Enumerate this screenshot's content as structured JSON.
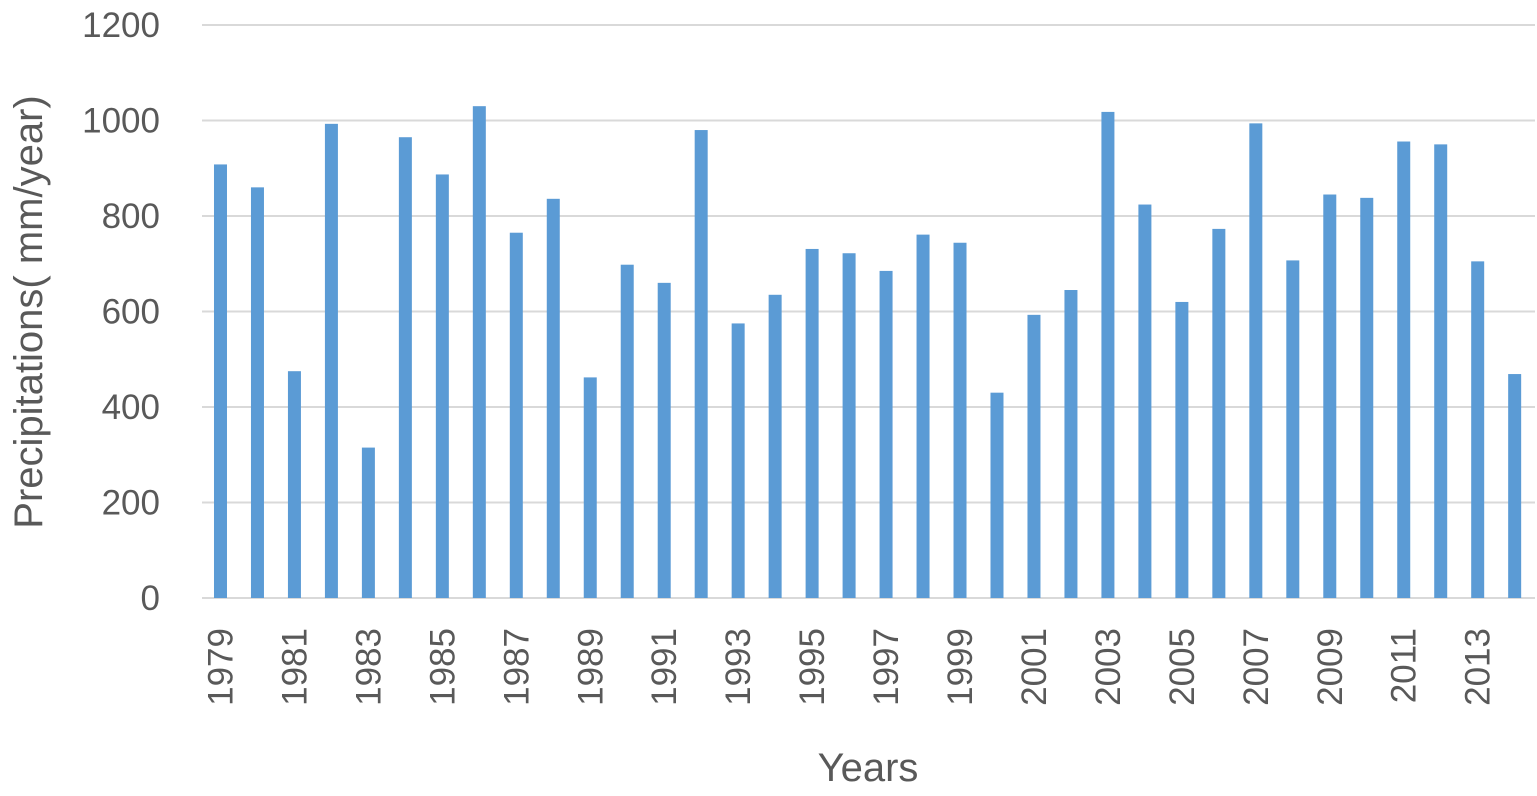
{
  "chart_data": {
    "type": "bar",
    "title": "",
    "xlabel": "Years",
    "ylabel": "Precipitations( mm/year)",
    "ylim": [
      0,
      1200
    ],
    "yticks": [
      0,
      200,
      400,
      600,
      800,
      1000,
      1200
    ],
    "grid": true,
    "legend": "none",
    "bar_color": "#5b9bd5",
    "categories": [
      "1979",
      "1980",
      "1981",
      "1982",
      "1983",
      "1984",
      "1985",
      "1986",
      "1987",
      "1988",
      "1989",
      "1990",
      "1991",
      "1992",
      "1993",
      "1994",
      "1995",
      "1996",
      "1997",
      "1998",
      "1999",
      "2000",
      "2001",
      "2002",
      "2003",
      "2004",
      "2005",
      "2006",
      "2007",
      "2008",
      "2009",
      "2010",
      "2011",
      "2012",
      "2013",
      "2014"
    ],
    "tick_labels": [
      "1979",
      "",
      "1981",
      "",
      "1983",
      "",
      "1985",
      "",
      "1987",
      "",
      "1989",
      "",
      "1991",
      "",
      "1993",
      "",
      "1995",
      "",
      "1997",
      "",
      "1999",
      "",
      "2001",
      "",
      "2003",
      "",
      "2005",
      "",
      "2007",
      "",
      "2009",
      "",
      "2011",
      "",
      "2013",
      ""
    ],
    "values": [
      908,
      860,
      475,
      993,
      315,
      965,
      887,
      1030,
      765,
      836,
      462,
      698,
      660,
      980,
      575,
      635,
      731,
      722,
      685,
      761,
      744,
      430,
      593,
      645,
      1018,
      824,
      620,
      773,
      994,
      707,
      845,
      838,
      956,
      950,
      705,
      469
    ]
  }
}
